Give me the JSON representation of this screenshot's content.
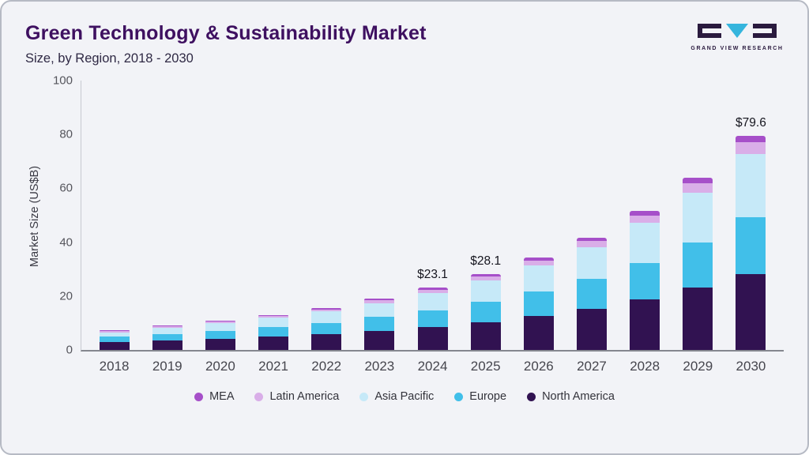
{
  "header": {
    "title": "Green Technology & Sustainability Market",
    "subtitle": "Size, by Region, 2018 - 2030"
  },
  "logo": {
    "name": "GRAND VIEW RESEARCH"
  },
  "chart_data": {
    "type": "bar",
    "stacked": true,
    "title": "Green Technology & Sustainability Market",
    "subtitle": "Size, by Region, 2018 - 2030",
    "ylabel": "Market Size (US$B)",
    "ylim": [
      0,
      100
    ],
    "yticks": [
      0,
      20,
      40,
      60,
      80,
      100
    ],
    "grid": false,
    "legend_position": "bottom",
    "categories": [
      "2018",
      "2019",
      "2020",
      "2021",
      "2022",
      "2023",
      "2024",
      "2025",
      "2026",
      "2027",
      "2028",
      "2029",
      "2030"
    ],
    "series": [
      {
        "name": "North America",
        "color": "#311251",
        "values": [
          2.9,
          3.6,
          4.2,
          5.0,
          5.9,
          7.1,
          8.6,
          10.4,
          12.6,
          15.3,
          18.8,
          23.2,
          28.2
        ]
      },
      {
        "name": "Europe",
        "color": "#41bfe9",
        "values": [
          2.0,
          2.4,
          2.9,
          3.5,
          4.2,
          5.1,
          6.1,
          7.4,
          9.0,
          11.0,
          13.5,
          16.8,
          21.2
        ]
      },
      {
        "name": "Asia Pacific",
        "color": "#c6e9f8",
        "values": [
          1.7,
          2.2,
          2.8,
          3.4,
          4.2,
          5.2,
          6.5,
          7.9,
          9.7,
          11.9,
          14.8,
          18.5,
          23.2
        ]
      },
      {
        "name": "Latin America",
        "color": "#d9aee8",
        "values": [
          0.4,
          0.5,
          0.6,
          0.7,
          0.8,
          1.0,
          1.2,
          1.5,
          1.8,
          2.3,
          2.8,
          3.5,
          4.5
        ]
      },
      {
        "name": "MEA",
        "color": "#a64fc9",
        "values": [
          0.2,
          0.3,
          0.3,
          0.4,
          0.5,
          0.6,
          0.7,
          0.9,
          1.1,
          1.3,
          1.6,
          2.0,
          2.5
        ]
      }
    ],
    "bar_labels": [
      "",
      "",
      "",
      "",
      "",
      "",
      "$23.1",
      "$28.1",
      "",
      "",
      "",
      "",
      "$79.6"
    ],
    "totals": [
      7.2,
      9.0,
      10.8,
      13.0,
      15.6,
      19.0,
      23.1,
      28.1,
      34.2,
      41.8,
      51.5,
      64.0,
      79.6
    ],
    "legend": [
      {
        "label": "MEA",
        "color": "#a64fc9"
      },
      {
        "label": "Latin America",
        "color": "#d9aee8"
      },
      {
        "label": "Asia Pacific",
        "color": "#c6e9f8"
      },
      {
        "label": "Europe",
        "color": "#41bfe9"
      },
      {
        "label": "North America",
        "color": "#311251"
      }
    ]
  }
}
